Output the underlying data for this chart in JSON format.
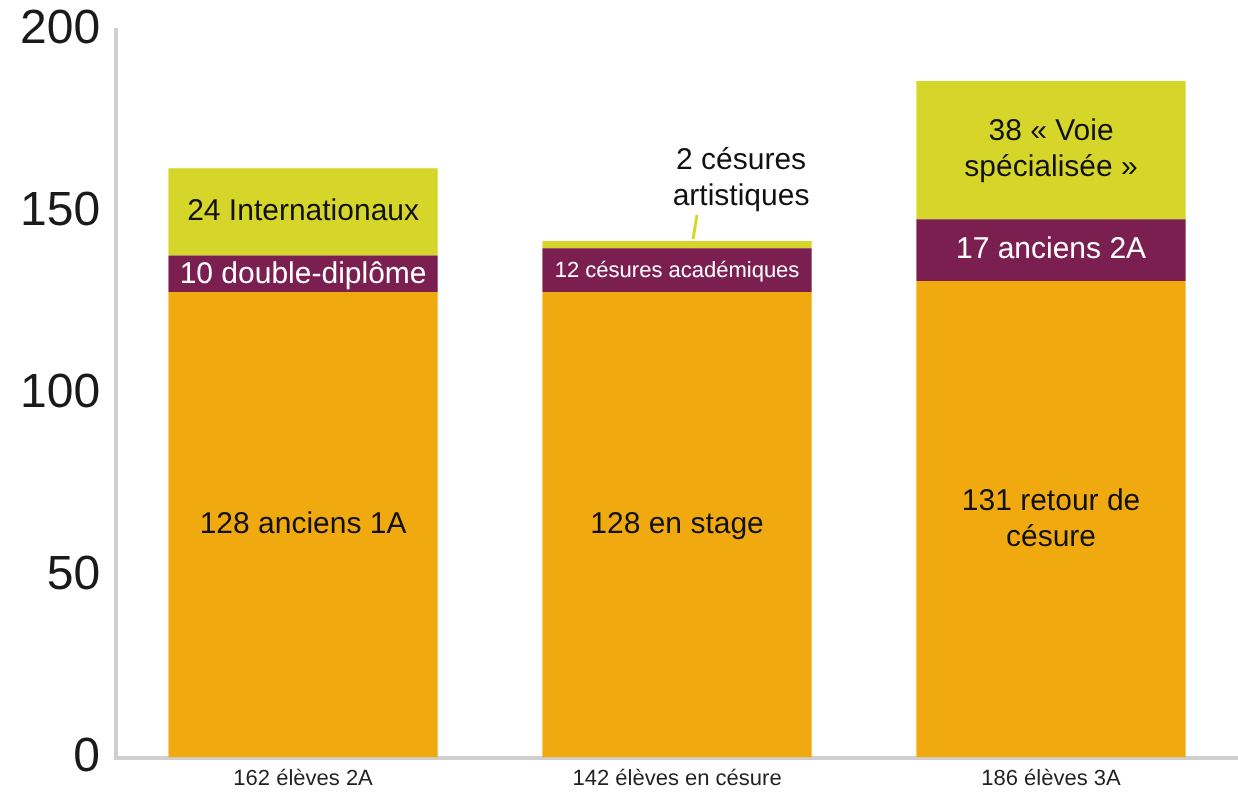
{
  "chart_data": {
    "type": "bar",
    "stacked": true,
    "categories": [
      "162 élèves 2A",
      "142 élèves en césure",
      "186 élèves 3A"
    ],
    "series": [
      {
        "color": "#f0aa10",
        "values": [
          128,
          128,
          131
        ],
        "value_labels": [
          "128 anciens 1A",
          "128 en stage",
          "131 retour de césure"
        ]
      },
      {
        "color": "#7a1f50",
        "values": [
          10,
          12,
          17
        ],
        "value_labels": [
          "10 double-diplôme",
          "12 césures académiques",
          "17 anciens 2A"
        ]
      },
      {
        "color": "#d6d62a",
        "values": [
          24,
          2,
          38
        ],
        "value_labels": [
          "24 Internationaux",
          "2 césures artistiques",
          "38 « Voie spécialisée »"
        ]
      }
    ],
    "ylim": [
      0,
      200
    ],
    "yticks": [
      0,
      50,
      100,
      150,
      200
    ]
  }
}
